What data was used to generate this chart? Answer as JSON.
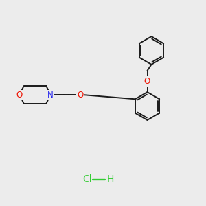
{
  "bg_color": "#ececec",
  "bond_color": "#1a1a1a",
  "oxygen_color": "#ee1100",
  "nitrogen_color": "#2222ee",
  "hcl_color": "#33cc33",
  "line_width": 1.4,
  "morpholine_O": "O",
  "morpholine_N": "N",
  "chain_O": "O",
  "benz_O": "O",
  "hcl_label": "Cl",
  "h_label": "H"
}
